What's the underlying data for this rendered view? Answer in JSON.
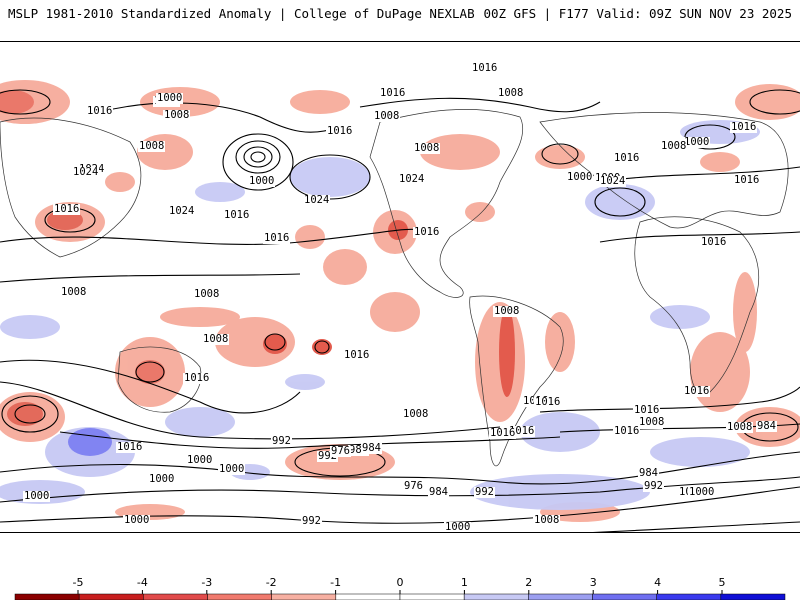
{
  "header": {
    "left_title": "MSLP 1981-2010 Standardized Anomaly | College of DuPage NEXLAB",
    "right_title": "00Z GFS | F177 Valid: 09Z SUN NOV 23 2025"
  },
  "map": {
    "contour_labels": [
      "1016",
      "1008",
      "1008",
      "1016",
      "1008",
      "1000",
      "1008",
      "1024",
      "1008",
      "1000",
      "1016",
      "1016",
      "1024",
      "1024",
      "1016",
      "1024",
      "1008",
      "1016",
      "1016",
      "1024",
      "1016",
      "1000",
      "1008",
      "1016",
      "1000",
      "1016",
      "1000",
      "1024",
      "1016",
      "1016",
      "1016",
      "1016",
      "1008",
      "1008",
      "1008",
      "1008",
      "1016",
      "1016",
      "1016",
      "1016",
      "1016",
      "1016",
      "1016",
      "1008",
      "1016",
      "1000",
      "1000",
      "984",
      "1008",
      "992",
      "1000",
      "992",
      "976",
      "984",
      "1000",
      "1016",
      "1008",
      "992",
      "1000",
      "1000",
      "976",
      "984",
      "992",
      "1000",
      "1008",
      "984",
      "992",
      "1000",
      "984"
    ]
  },
  "colorbar": {
    "ticks": [
      "-5",
      "-4",
      "-3",
      "-2",
      "-1",
      "0",
      "1",
      "2",
      "3",
      "4",
      "5"
    ],
    "colors": [
      "#8b0000",
      "#c81e1e",
      "#e14b4b",
      "#f07a6e",
      "#f7b0a2",
      "#ffffff",
      "#ffffff",
      "#c7c9f4",
      "#9c9ff0",
      "#6f6ff0",
      "#3a3aee",
      "#1010d6"
    ]
  }
}
